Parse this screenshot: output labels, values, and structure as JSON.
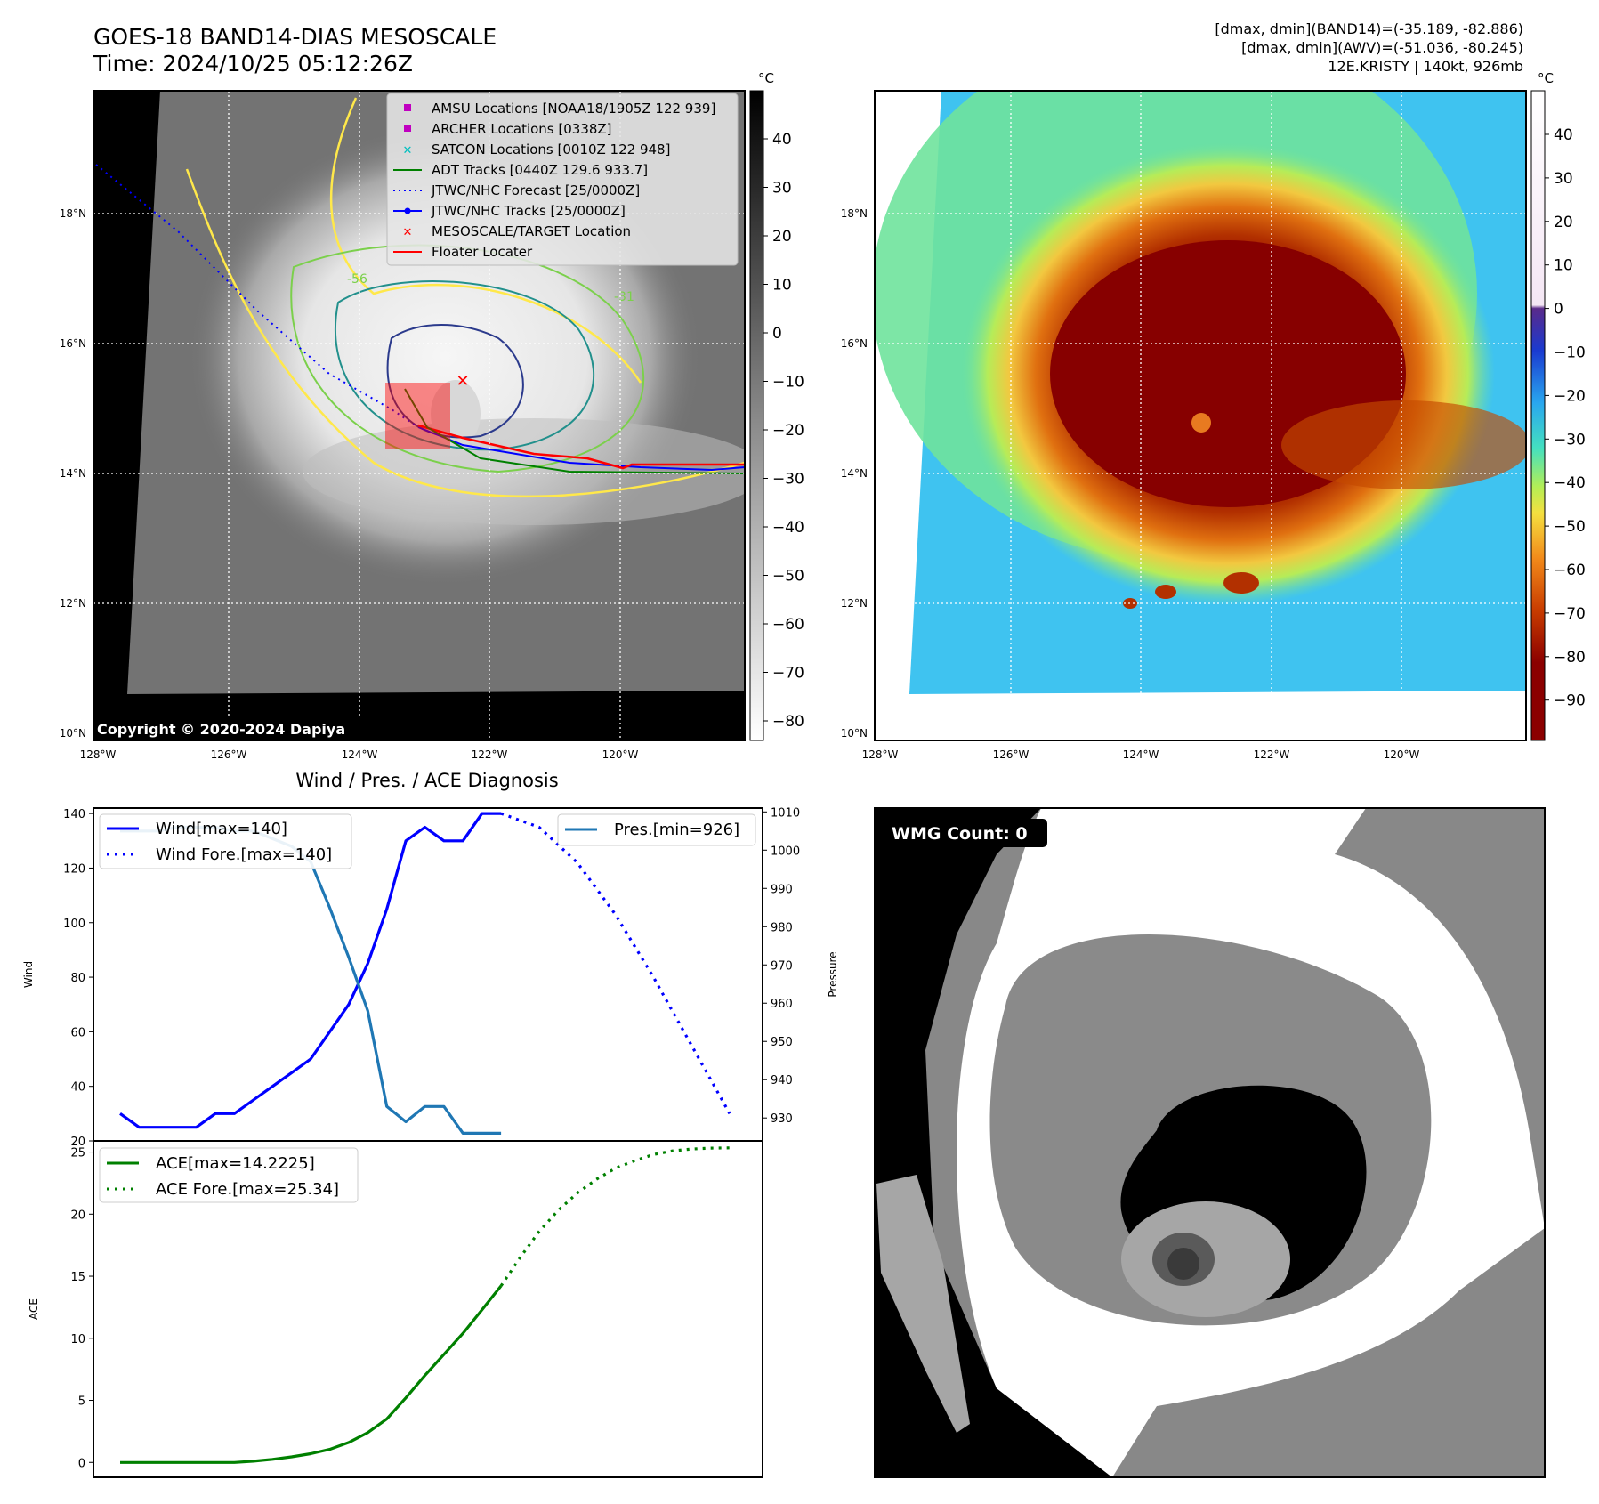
{
  "header": {
    "title_line1": "GOES-18 BAND14-DIAS MESOSCALE",
    "title_line2": "Time: 2024/10/25 05:12:26Z",
    "stat_line1": "[dmax, dmin](BAND14)=(-35.189, -82.886)",
    "stat_line2": "[dmax, dmin](AWV)=(-51.036, -80.245)",
    "stat_line3": "12E.KRISTY | 140kt, 926mb"
  },
  "maps": {
    "lat_labels": [
      "18°N",
      "16°N",
      "14°N",
      "12°N",
      "10°N"
    ],
    "lon_labels": [
      "128°W",
      "126°W",
      "124°W",
      "122°W",
      "120°W"
    ],
    "copyright": "Copyright © 2020-2024 Dapiya",
    "unit_label": "°C",
    "gray_colorbar_ticks": [
      "40",
      "30",
      "20",
      "10",
      "0",
      "−10",
      "−20",
      "−30",
      "−40",
      "−50",
      "−60",
      "−70",
      "−80"
    ],
    "color_colorbar_ticks": [
      "40",
      "30",
      "20",
      "10",
      "0",
      "−10",
      "−20",
      "−30",
      "−40",
      "−50",
      "−60",
      "−70",
      "−80",
      "−90"
    ],
    "contour_labels": [
      "-56",
      "-31"
    ],
    "colors": {
      "gray_bg": "#6e6e6e",
      "cold_top": "#8b0000",
      "warm_bg": "#3fc3f0"
    }
  },
  "legend": {
    "items": [
      {
        "label": "AMSU Locations [NOAA18/1905Z 122 939]",
        "symbol": "square",
        "color": "#c000c0"
      },
      {
        "label": "ARCHER Locations [0338Z]",
        "symbol": "square",
        "color": "#c000c0"
      },
      {
        "label": "SATCON Locations [0010Z 122 948]",
        "symbol": "x",
        "color": "#00bfbf"
      },
      {
        "label": "ADT Tracks [0440Z 129.6 933.7]",
        "symbol": "line",
        "color": "#008000"
      },
      {
        "label": "JTWC/NHC Forecast [25/0000Z]",
        "symbol": "dotted",
        "color": "#0000ff"
      },
      {
        "label": "JTWC/NHC Tracks [25/0000Z]",
        "symbol": "line-dot",
        "color": "#0000ff"
      },
      {
        "label": "MESOSCALE/TARGET Location",
        "symbol": "x",
        "color": "#ff0000"
      },
      {
        "label": "Floater Locater",
        "symbol": "line",
        "color": "#ff0000"
      }
    ]
  },
  "diagnosis": {
    "title": "Wind / Pres. / ACE Diagnosis",
    "wind_ylabel": "Wind",
    "pressure_ylabel": "Pressure",
    "ace_ylabel": "ACE",
    "wind_legend": "Wind[max=140]",
    "wind_fore_legend": "Wind Fore.[max=140]",
    "pres_legend": "Pres.[min=926]",
    "ace_legend": "ACE[max=14.2225]",
    "ace_fore_legend": "ACE Fore.[max=25.34]"
  },
  "wmg": {
    "count_label": "WMG Count: 0"
  },
  "chart_data": [
    {
      "type": "line",
      "title": "Wind / Pres. / ACE Diagnosis",
      "ylabel": "Wind",
      "ylim": [
        20,
        142
      ],
      "yticks": [
        20,
        40,
        60,
        80,
        100,
        120,
        140
      ],
      "x_range": [
        0,
        32
      ],
      "series": [
        {
          "name": "Wind[max=140]",
          "color": "#0000ff",
          "style": "solid",
          "x": [
            0,
            1,
            2,
            3,
            4,
            5,
            6,
            7,
            8,
            9,
            10,
            11,
            12,
            13,
            14,
            15,
            16,
            17,
            18,
            19,
            20
          ],
          "values": [
            30,
            25,
            25,
            25,
            25,
            30,
            30,
            35,
            40,
            45,
            50,
            60,
            70,
            85,
            105,
            130,
            135,
            130,
            130,
            140,
            140
          ]
        },
        {
          "name": "Wind Fore.[max=140]",
          "color": "#0000ff",
          "style": "dotted",
          "x": [
            20,
            22,
            24,
            26,
            28,
            30,
            32
          ],
          "values": [
            140,
            135,
            122,
            103,
            80,
            55,
            30
          ]
        },
        {
          "name": "Pres.[min=926]",
          "color": "#1f77b4",
          "style": "solid",
          "axis": "right",
          "x": [
            0,
            1,
            2,
            3,
            4,
            5,
            6,
            7,
            8,
            9,
            10,
            11,
            12,
            13,
            14,
            15,
            16,
            17,
            18,
            19,
            20
          ],
          "values": [
            1005,
            1005,
            1005,
            1006,
            1006,
            1006,
            1005,
            1005,
            1003,
            1001,
            997,
            985,
            972,
            958,
            933,
            929,
            933,
            933,
            926,
            926,
            926
          ]
        }
      ],
      "y2label": "Pressure",
      "y2lim": [
        924,
        1011
      ],
      "y2ticks": [
        930,
        940,
        950,
        960,
        970,
        980,
        990,
        1000,
        1010
      ]
    },
    {
      "type": "line",
      "ylabel": "ACE",
      "ylim": [
        -1.2,
        25.9
      ],
      "yticks": [
        0,
        5,
        10,
        15,
        20,
        25
      ],
      "x_range": [
        0,
        32
      ],
      "series": [
        {
          "name": "ACE[max=14.2225]",
          "color": "#008000",
          "style": "solid",
          "x": [
            0,
            2,
            4,
            6,
            7,
            8,
            9,
            10,
            11,
            12,
            13,
            14,
            15,
            16,
            17,
            18,
            19,
            20
          ],
          "values": [
            0,
            0,
            0,
            0,
            0.1,
            0.25,
            0.45,
            0.7,
            1.05,
            1.6,
            2.4,
            3.5,
            5.2,
            7.0,
            8.7,
            10.4,
            12.3,
            14.22
          ]
        },
        {
          "name": "ACE Fore.[max=25.34]",
          "color": "#008000",
          "style": "dotted",
          "x": [
            20,
            21,
            22,
            23,
            24,
            25,
            26,
            27,
            28,
            29,
            30,
            31,
            32
          ],
          "values": [
            14.22,
            16.5,
            18.6,
            20.3,
            21.7,
            22.8,
            23.7,
            24.3,
            24.8,
            25.1,
            25.25,
            25.32,
            25.34
          ]
        }
      ]
    }
  ]
}
